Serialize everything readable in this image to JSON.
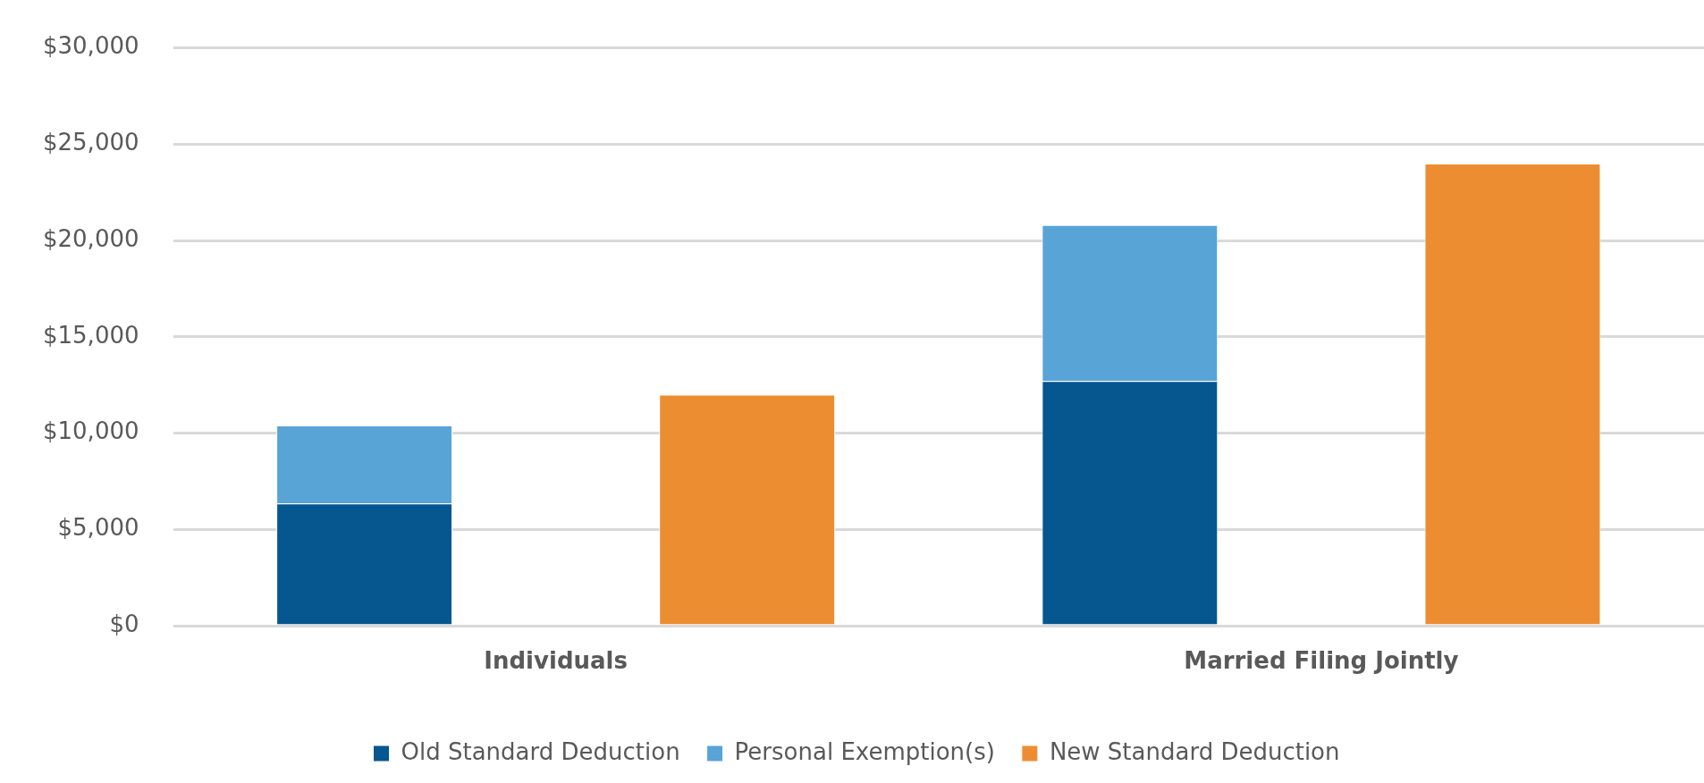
{
  "chart_data": {
    "type": "bar",
    "stacked": true,
    "categories": [
      "Individuals",
      null,
      "Married Filing Jointly",
      null
    ],
    "series": [
      {
        "name": "Old Standard Deduction",
        "color": "#06568f",
        "values": [
          6350,
          null,
          12700,
          null
        ]
      },
      {
        "name": "Personal Exemption(s)",
        "color": "#58a4d6",
        "values": [
          4050,
          null,
          8100,
          null
        ]
      },
      {
        "name": "New Standard Deduction",
        "color": "#ed8d31",
        "values": [
          null,
          12000,
          null,
          24000
        ]
      }
    ],
    "ylim": [
      0,
      30000
    ],
    "yticks": [
      {
        "value": 0,
        "label": "$0"
      },
      {
        "value": 5000,
        "label": "$5,000"
      },
      {
        "value": 10000,
        "label": "$10,000"
      },
      {
        "value": 15000,
        "label": "$15,000"
      },
      {
        "value": 20000,
        "label": "$20,000"
      },
      {
        "value": 25000,
        "label": "$25,000"
      },
      {
        "value": 30000,
        "label": "$30,000"
      }
    ],
    "grid": "y",
    "legend": "bottom"
  }
}
